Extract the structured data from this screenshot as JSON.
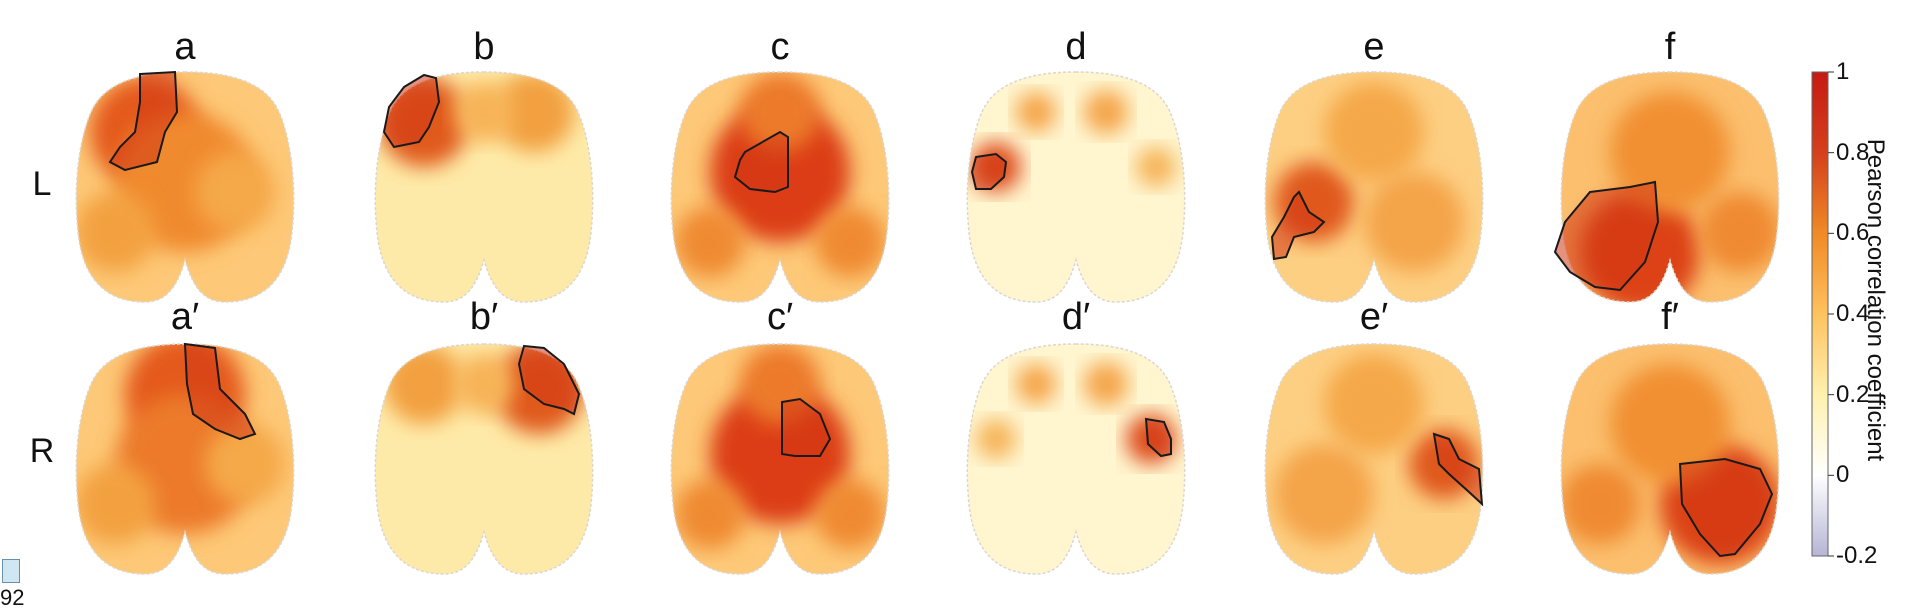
{
  "figure": {
    "row_labels": [
      "L",
      "R"
    ],
    "top_panel_labels": [
      "a",
      "b",
      "c",
      "d",
      "e",
      "f"
    ],
    "bottom_panel_labels": [
      "a′",
      "b′",
      "c′",
      "d′",
      "e′",
      "f′"
    ],
    "edge_fragment_text": "92"
  },
  "colorbar": {
    "title": "Pearson correlation coefficient",
    "ticks": [
      "1",
      "0.8",
      "0.6",
      "0.4",
      "0.2",
      "0",
      "-0.2"
    ],
    "range": [
      -0.2,
      1
    ],
    "colors": [
      "#b5b5d6",
      "#ffffff",
      "#fff1b0",
      "#fec25e",
      "#f08a26",
      "#d4401c",
      "#c61a12"
    ]
  },
  "chart_data": {
    "type": "heatmap",
    "title": "",
    "rows": [
      "L",
      "R"
    ],
    "columns": [
      "a",
      "b",
      "c",
      "d",
      "e",
      "f"
    ],
    "value_range": [
      -0.2,
      1
    ],
    "highlighted_region_value_approx": 0.85,
    "colorbar_label": "Pearson correlation coefficient"
  }
}
